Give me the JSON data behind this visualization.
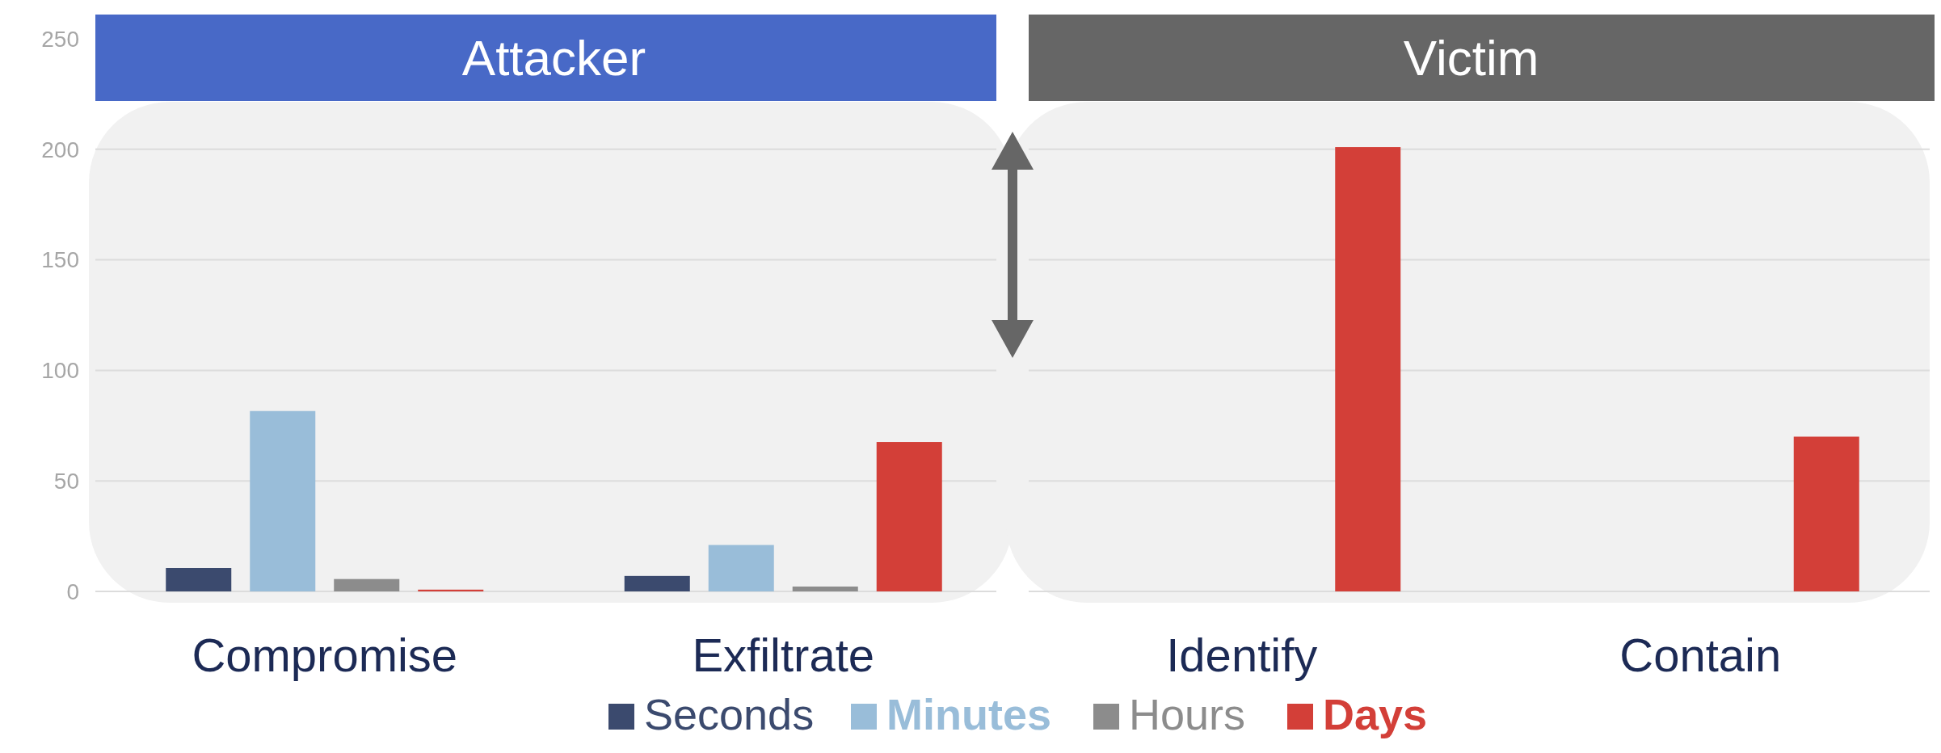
{
  "chart_data": {
    "type": "bar",
    "categories": [
      "Compromise",
      "Exfiltrate",
      "Identify",
      "Contain"
    ],
    "series": [
      {
        "name": "Seconds",
        "color": "#3b4a6e",
        "values": [
          10.6,
          7,
          null,
          null
        ]
      },
      {
        "name": "Minutes",
        "color": "#99bdd9",
        "values": [
          81.6,
          21,
          null,
          null
        ]
      },
      {
        "name": "Hours",
        "color": "#8c8c8c",
        "values": [
          5.6,
          2.2,
          null,
          null
        ]
      },
      {
        "name": "Days",
        "color": "#d33f38",
        "values": [
          0.8,
          67.6,
          201,
          70
        ]
      }
    ],
    "ylim": [
      0,
      250
    ],
    "yticks": [
      0,
      50,
      100,
      150,
      200,
      250
    ],
    "grid": "y",
    "legend": "bottom",
    "annotations": [
      "Attacker",
      "Victim"
    ]
  }
}
